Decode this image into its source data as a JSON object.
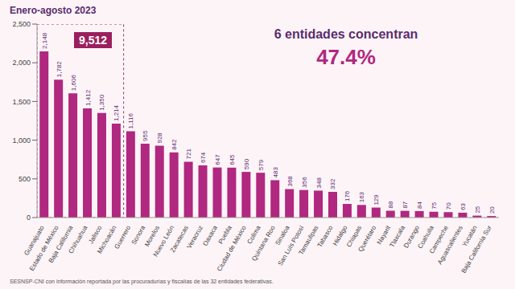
{
  "chart_data": {
    "type": "bar",
    "title": "Enero-agosto 2023",
    "categories": [
      "Guanajuato",
      "Estado de México",
      "Baja California",
      "Chihuahua",
      "Jalisco",
      "Michoacán",
      "Guerrero",
      "Sonora",
      "Morelos",
      "Nuevo León",
      "Zacatecas",
      "Veracruz",
      "Oaxaca",
      "Puebla",
      "Ciudad de México",
      "Colima",
      "Quintana Roo",
      "Sinaloa",
      "San Luis Potosí",
      "Tamaulipas",
      "Tabasco",
      "Hidalgo",
      "Chiapas",
      "Querétaro",
      "Nayarit",
      "Tlaxcala",
      "Durango",
      "Coahuila",
      "Campeche",
      "Aguascalientes",
      "Yucatán",
      "Baja California Sur"
    ],
    "values": [
      2148,
      1782,
      1606,
      1412,
      1350,
      1214,
      1116,
      955,
      928,
      842,
      721,
      674,
      647,
      645,
      590,
      579,
      483,
      368,
      356,
      348,
      332,
      176,
      163,
      129,
      88,
      87,
      84,
      75,
      70,
      63,
      25,
      20
    ],
    "value_labels": [
      "2,148",
      "1,782",
      "1,606",
      "1,412",
      "1,350",
      "1,214",
      "1,116",
      "955",
      "928",
      "842",
      "721",
      "674",
      "647",
      "645",
      "590",
      "579",
      "483",
      "368",
      "356",
      "348",
      "332",
      "176",
      "163",
      "129",
      "88",
      "87",
      "84",
      "75",
      "70",
      "63",
      "25",
      "20"
    ],
    "color": "#b0287f",
    "ylim": [
      0,
      2500
    ],
    "yticks": [
      0,
      500,
      {
        "value": 1000,
        "label": "1,000"
      },
      {
        "value": 1500,
        "label": "1,500"
      },
      {
        "value": 2000,
        "label": "2,000"
      },
      {
        "value": 2500,
        "label": "2,500"
      }
    ],
    "data_labels": true,
    "grid": false,
    "annotations": [
      "9,512",
      "6 entidades concentran",
      "47.4%"
    ],
    "source": "SESNSP-CNI con información reportada por las procuradurías y fiscalías de las 32 entidades federativas."
  }
}
